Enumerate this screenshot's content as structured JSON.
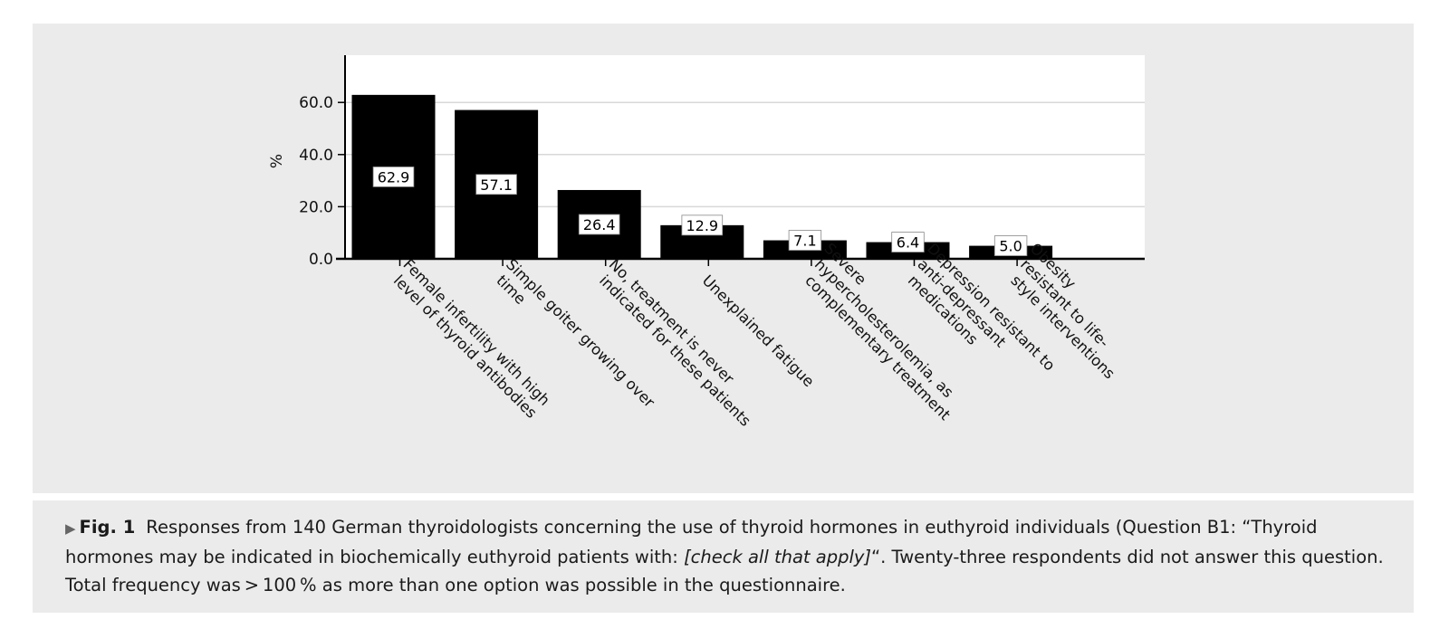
{
  "chart_data": {
    "type": "bar",
    "ylabel": "%",
    "ylim": [
      0,
      78
    ],
    "yticks": [
      "0.0",
      "20.0",
      "40.0",
      "60.0"
    ],
    "ytick_values": [
      0,
      20,
      40,
      60
    ],
    "grid": "horizontal",
    "categories": [
      [
        "Female infertility with high",
        "level of thyroid antibodies"
      ],
      [
        "Simple goiter growing over",
        "time"
      ],
      [
        "No, treatment is never",
        "indicated for these patients"
      ],
      [
        "Unexplained fatigue"
      ],
      [
        "Severe",
        "hypercholesterolemia, as",
        "complementary treatment"
      ],
      [
        "Depression resistant to",
        "anti-depressant",
        "medications"
      ],
      [
        "Obesity",
        "resistant to life-",
        "style interventions"
      ]
    ],
    "values": [
      62.9,
      57.1,
      26.4,
      12.9,
      7.1,
      6.4,
      5.0
    ],
    "data_labels": [
      "62.9",
      "57.1",
      "26.4",
      "12.9",
      "7.1",
      "6.4",
      "5.0"
    ],
    "bar_color": "#000000"
  },
  "caption": {
    "label": "Fig. 1",
    "text_before": "Responses from 140 German thyroidologists concerning the use of thyroid hormones in euthyroid individuals (Question B1: “Thyroid hormones may be indicated in biochemically euthyroid patients with: ",
    "text_italic": "[check all that apply]",
    "text_after": "“. Twenty-three respondents did not answer this question. Total frequency was > 100 % as more than one option was possible in the questionnaire."
  }
}
